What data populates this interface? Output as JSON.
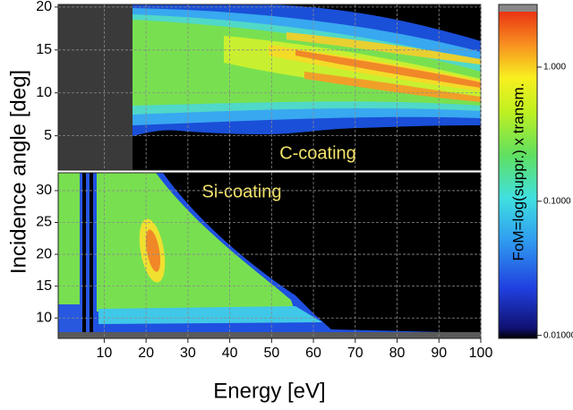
{
  "chart_data": [
    {
      "type": "heatmap",
      "ylabel": "Incidence angle [deg]",
      "ylim": [
        1,
        20.3
      ],
      "yticks": [
        5,
        10,
        15,
        20
      ],
      "annotation": "C-coating",
      "annotation_color": "#f3e36b",
      "grid": true
    },
    {
      "type": "heatmap",
      "xlabel": "Energy [eV]",
      "xlim": [
        -1,
        100
      ],
      "xticks": [
        10,
        20,
        30,
        40,
        50,
        60,
        70,
        80,
        90,
        100
      ],
      "ylim": [
        6.8,
        32.8
      ],
      "yticks": [
        10,
        15,
        20,
        25,
        30
      ],
      "annotation": "Si-coating",
      "annotation_color": "#f3e36b",
      "grid": true,
      "colorbar": {
        "label": "FoM=log(suppr.) x transm.",
        "scale": "log",
        "lim": [
          0.0095,
          2.93
        ],
        "ticks": [
          {
            "value": 1,
            "label": "1.000"
          },
          {
            "value": 0.1,
            "label": "0.1000"
          },
          {
            "value": 0.01,
            "label": "0.01000"
          }
        ]
      }
    }
  ]
}
